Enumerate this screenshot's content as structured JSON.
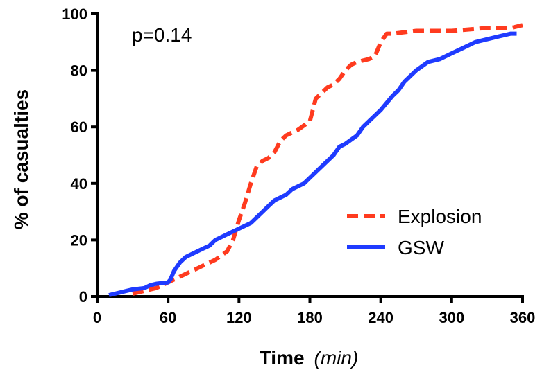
{
  "chart_data": {
    "type": "line",
    "title": "",
    "xlabel": "Time",
    "xlabel_unit": "(min)",
    "ylabel": "% of casualties",
    "xlim": [
      0,
      360
    ],
    "ylim": [
      0,
      100
    ],
    "xticks": [
      0,
      60,
      120,
      180,
      240,
      300,
      360
    ],
    "yticks": [
      0,
      20,
      40,
      60,
      80,
      100
    ],
    "grid": false,
    "legend_position": "bottom-right",
    "annotation": "p=0.14",
    "series": [
      {
        "name": "Explosion",
        "color": "#ff3b1f",
        "dash": "dashed",
        "x": [
          30,
          40,
          50,
          60,
          70,
          80,
          90,
          100,
          110,
          115,
          120,
          125,
          130,
          135,
          140,
          145,
          150,
          155,
          160,
          170,
          180,
          185,
          190,
          195,
          200,
          205,
          210,
          215,
          220,
          230,
          235,
          240,
          245,
          250,
          270,
          300,
          330,
          350,
          360
        ],
        "y": [
          1,
          2,
          3,
          5,
          7,
          9,
          11,
          13,
          16,
          20,
          27,
          33,
          40,
          46,
          48,
          49,
          51,
          55,
          57,
          59,
          62,
          70,
          72,
          74,
          75,
          77,
          80,
          82,
          83,
          84,
          85,
          90,
          93,
          93,
          94,
          94,
          95,
          95,
          96
        ]
      },
      {
        "name": "GSW",
        "color": "#1f3bff",
        "dash": "solid",
        "x": [
          10,
          20,
          25,
          30,
          40,
          45,
          50,
          60,
          62,
          65,
          70,
          75,
          80,
          90,
          95,
          100,
          110,
          120,
          130,
          135,
          140,
          145,
          150,
          160,
          165,
          170,
          175,
          180,
          185,
          190,
          200,
          205,
          210,
          220,
          225,
          230,
          240,
          250,
          255,
          260,
          270,
          280,
          290,
          300,
          310,
          320,
          330,
          340,
          350,
          355
        ],
        "y": [
          0.5,
          1.5,
          2,
          2.5,
          3,
          4,
          4.5,
          5,
          6,
          9,
          12,
          14,
          15,
          17,
          18,
          20,
          22,
          24,
          26,
          28,
          30,
          32,
          34,
          36,
          38,
          39,
          40,
          42,
          44,
          46,
          50,
          53,
          54,
          57,
          60,
          62,
          66,
          71,
          73,
          76,
          80,
          83,
          84,
          86,
          88,
          90,
          91,
          92,
          93,
          93
        ]
      }
    ]
  }
}
